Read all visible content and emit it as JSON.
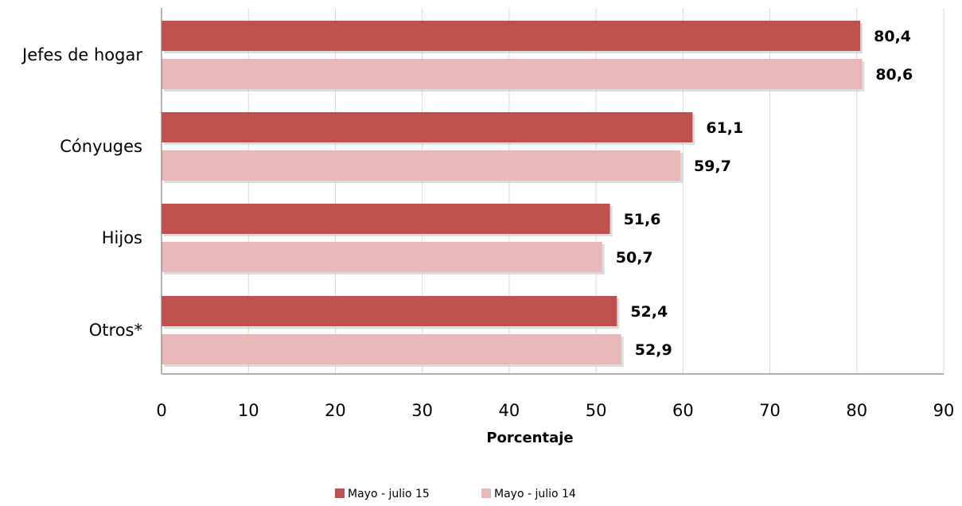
{
  "chart_data": {
    "type": "bar",
    "orientation": "horizontal",
    "categories": [
      "Jefes de hogar",
      "Cónyuges",
      "Hijos",
      "Otros*"
    ],
    "series": [
      {
        "name": "Mayo - julio 15",
        "values": [
          80.4,
          61.1,
          51.6,
          52.4
        ],
        "labels": [
          "80,4",
          "61,1",
          "51,6",
          "52,4"
        ],
        "color": "#c0504d"
      },
      {
        "name": "Mayo - julio 14",
        "values": [
          80.6,
          59.7,
          50.7,
          52.9
        ],
        "labels": [
          "80,6",
          "59,7",
          "50,7",
          "52,9"
        ],
        "color": "#e6b9b8"
      }
    ],
    "xlabel": "Porcentaje",
    "xlim": [
      0,
      90
    ],
    "xticks": [
      "0",
      "10",
      "20",
      "30",
      "40",
      "50",
      "60",
      "70",
      "80",
      "90"
    ],
    "grid": true,
    "legend_position": "bottom"
  }
}
